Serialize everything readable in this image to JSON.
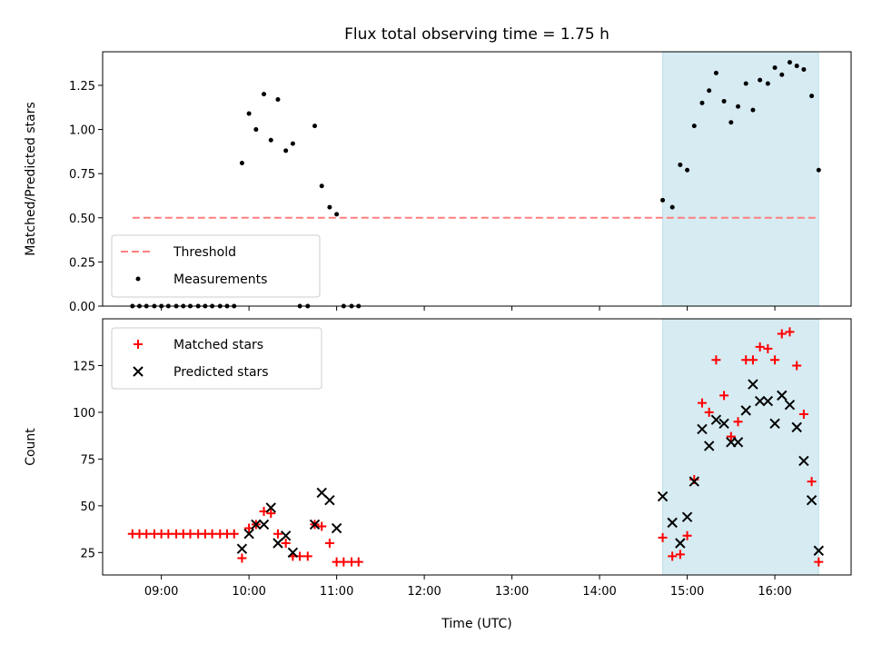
{
  "title": "Flux total observing time = 1.75 h",
  "chart_data": [
    {
      "type": "scatter",
      "panel": "top",
      "ylabel": "Matched/Predicted stars",
      "xlim": [
        8.33,
        16.87
      ],
      "ylim": [
        0.0,
        1.44
      ],
      "yticks": [
        0.0,
        0.25,
        0.5,
        0.75,
        1.0,
        1.25
      ],
      "ytick_labels": [
        "0.00",
        "0.25",
        "0.50",
        "0.75",
        "1.00",
        "1.25"
      ],
      "x_tick_labels_shown": false,
      "threshold": {
        "name": "Threshold",
        "value": 0.5,
        "x_range": [
          8.67,
          16.5
        ],
        "color": "#ff7f7f"
      },
      "shaded_span": {
        "x_range": [
          14.72,
          16.5
        ],
        "color": "#add8e6"
      },
      "legend": [
        "Threshold",
        "Measurements"
      ],
      "legend_position": "lower-left",
      "series": [
        {
          "name": "Measurements",
          "color": "#000000",
          "marker": "point",
          "x": [
            8.67,
            8.75,
            8.83,
            8.92,
            9.0,
            9.08,
            9.17,
            9.25,
            9.33,
            9.42,
            9.5,
            9.58,
            9.67,
            9.75,
            9.83,
            9.92,
            10.0,
            10.08,
            10.17,
            10.25,
            10.33,
            10.42,
            10.5,
            10.58,
            10.67,
            10.75,
            10.83,
            10.92,
            11.0,
            11.08,
            11.17,
            11.25,
            14.72,
            14.83,
            14.92,
            15.0,
            15.08,
            15.17,
            15.25,
            15.33,
            15.42,
            15.5,
            15.58,
            15.67,
            15.75,
            15.83,
            15.92,
            16.0,
            16.08,
            16.17,
            16.25,
            16.33,
            16.42,
            16.5
          ],
          "y": [
            0.0,
            0.0,
            0.0,
            0.0,
            0.0,
            0.0,
            0.0,
            0.0,
            0.0,
            0.0,
            0.0,
            0.0,
            0.0,
            0.0,
            0.0,
            0.81,
            1.09,
            1.0,
            1.2,
            0.94,
            1.17,
            0.88,
            0.92,
            0.0,
            0.0,
            1.02,
            0.68,
            0.56,
            0.52,
            0.0,
            0.0,
            0.0,
            0.6,
            0.56,
            0.8,
            0.77,
            1.02,
            1.15,
            1.22,
            1.32,
            1.16,
            1.04,
            1.13,
            1.26,
            1.11,
            1.28,
            1.26,
            1.35,
            1.31,
            1.38,
            1.36,
            1.34,
            1.19,
            0.77
          ]
        }
      ]
    },
    {
      "type": "scatter",
      "panel": "bottom",
      "xlabel": "Time (UTC)",
      "ylabel": "Count",
      "xlim": [
        8.33,
        16.87
      ],
      "ylim": [
        13,
        150
      ],
      "xticks": [
        9,
        10,
        11,
        12,
        13,
        14,
        15,
        16
      ],
      "xtick_labels": [
        "09:00",
        "10:00",
        "11:00",
        "12:00",
        "13:00",
        "14:00",
        "15:00",
        "16:00"
      ],
      "yticks": [
        25,
        50,
        75,
        100,
        125
      ],
      "ytick_labels": [
        "25",
        "50",
        "75",
        "100",
        "125"
      ],
      "shaded_span": {
        "x_range": [
          14.72,
          16.5
        ],
        "color": "#add8e6"
      },
      "legend": [
        "Matched stars",
        "Predicted stars"
      ],
      "legend_position": "upper-left",
      "series": [
        {
          "name": "Matched stars",
          "color": "#ff0000",
          "marker": "plus",
          "x": [
            8.67,
            8.75,
            8.83,
            8.92,
            9.0,
            9.08,
            9.17,
            9.25,
            9.33,
            9.42,
            9.5,
            9.58,
            9.67,
            9.75,
            9.83,
            9.92,
            10.0,
            10.08,
            10.17,
            10.25,
            10.33,
            10.42,
            10.5,
            10.58,
            10.67,
            10.75,
            10.83,
            10.92,
            11.0,
            11.08,
            11.17,
            11.25,
            14.72,
            14.83,
            14.92,
            15.0,
            15.08,
            15.17,
            15.25,
            15.33,
            15.42,
            15.5,
            15.58,
            15.67,
            15.75,
            15.83,
            15.92,
            16.0,
            16.08,
            16.17,
            16.25,
            16.33,
            16.42,
            16.5
          ],
          "y": [
            35,
            35,
            35,
            35,
            35,
            35,
            35,
            35,
            35,
            35,
            35,
            35,
            35,
            35,
            35,
            22,
            38,
            40,
            47,
            46,
            35,
            30,
            23,
            23,
            23,
            40,
            39,
            30,
            20,
            20,
            20,
            20,
            33,
            23,
            24,
            34,
            64,
            105,
            100,
            128,
            109,
            87,
            95,
            128,
            128,
            135,
            134,
            128,
            142,
            143,
            125,
            99,
            63,
            20
          ]
        },
        {
          "name": "Predicted stars",
          "color": "#000000",
          "marker": "x",
          "x": [
            9.92,
            10.0,
            10.08,
            10.17,
            10.25,
            10.33,
            10.42,
            10.5,
            10.75,
            10.83,
            10.92,
            11.0,
            14.72,
            14.83,
            14.92,
            15.0,
            15.08,
            15.17,
            15.25,
            15.33,
            15.42,
            15.5,
            15.58,
            15.67,
            15.75,
            15.83,
            15.92,
            16.0,
            16.08,
            16.17,
            16.25,
            16.33,
            16.42,
            16.5
          ],
          "y": [
            27,
            35,
            40,
            40,
            49,
            30,
            34,
            25,
            40,
            57,
            53,
            38,
            55,
            41,
            30,
            44,
            63,
            91,
            82,
            96,
            94,
            84,
            84,
            101,
            115,
            106,
            106,
            94,
            109,
            104,
            92,
            74,
            53,
            26
          ]
        }
      ]
    }
  ]
}
